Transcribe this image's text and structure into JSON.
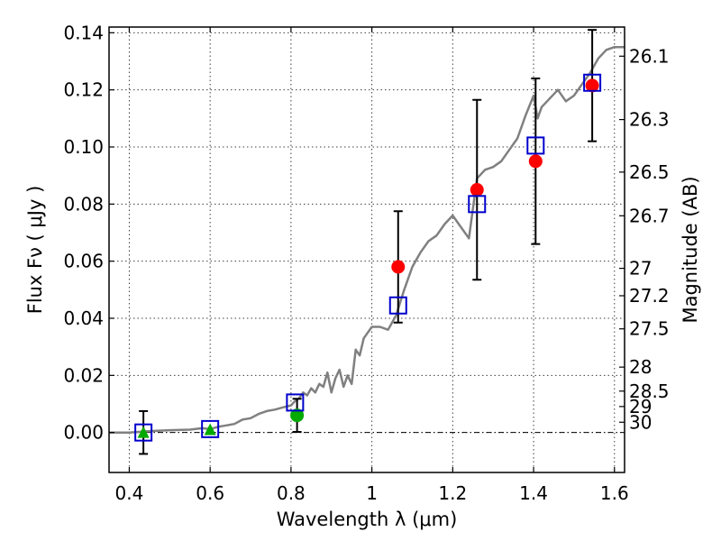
{
  "chart_data": {
    "type": "scatter",
    "xlabel": "Wavelength  λ (μm)",
    "ylabel": "Flux  Fν  ( μJy )",
    "ylabel_right": "Magnitude (AB)",
    "xlim": [
      0.35,
      1.625
    ],
    "ylim": [
      -0.014,
      0.142
    ],
    "grid": true,
    "x_ticks": [
      0.4,
      0.6,
      0.8,
      1.0,
      1.2,
      1.4,
      1.6
    ],
    "x_tick_labels": [
      "0.4",
      "0.6",
      "0.8",
      "1",
      "1.2",
      "1.4",
      "1.6"
    ],
    "y_ticks": [
      0.0,
      0.02,
      0.04,
      0.06,
      0.08,
      0.1,
      0.12,
      0.14
    ],
    "y_tick_labels": [
      "0.00",
      "0.02",
      "0.04",
      "0.06",
      "0.08",
      "0.10",
      "0.12",
      "0.14"
    ],
    "magnitude_ticks": [
      {
        "label": "26.1",
        "flux": 0.1318
      },
      {
        "label": "26.3",
        "flux": 0.1096
      },
      {
        "label": "26.5",
        "flux": 0.0912
      },
      {
        "label": "26.7",
        "flux": 0.0759
      },
      {
        "label": "27",
        "flux": 0.0575
      },
      {
        "label": "27.2",
        "flux": 0.0479
      },
      {
        "label": "27.5",
        "flux": 0.0363
      },
      {
        "label": "28",
        "flux": 0.0229
      },
      {
        "label": "28.5",
        "flux": 0.0145
      },
      {
        "label": "29",
        "flux": 0.0091
      },
      {
        "label": "30",
        "flux": 0.0036
      }
    ],
    "series": [
      {
        "marker": "line",
        "color": "#808080",
        "x": [
          0.35,
          0.4,
          0.45,
          0.5,
          0.55,
          0.58,
          0.6,
          0.62,
          0.64,
          0.66,
          0.68,
          0.7,
          0.72,
          0.74,
          0.76,
          0.78,
          0.8,
          0.81,
          0.82,
          0.83,
          0.84,
          0.85,
          0.86,
          0.87,
          0.88,
          0.89,
          0.9,
          0.91,
          0.92,
          0.93,
          0.94,
          0.95,
          0.96,
          0.97,
          0.98,
          0.99,
          1.0,
          1.02,
          1.04,
          1.06,
          1.08,
          1.1,
          1.12,
          1.14,
          1.16,
          1.18,
          1.2,
          1.22,
          1.24,
          1.26,
          1.28,
          1.3,
          1.32,
          1.34,
          1.36,
          1.38,
          1.4,
          1.41,
          1.42,
          1.44,
          1.46,
          1.48,
          1.5,
          1.52,
          1.54,
          1.56,
          1.58,
          1.6,
          1.625
        ],
        "y": [
          0.0,
          0.0,
          0.0005,
          0.0008,
          0.001,
          0.0015,
          0.0012,
          0.002,
          0.0025,
          0.003,
          0.0045,
          0.005,
          0.0065,
          0.0075,
          0.008,
          0.0088,
          0.0095,
          0.011,
          0.012,
          0.014,
          0.013,
          0.0155,
          0.014,
          0.017,
          0.016,
          0.021,
          0.014,
          0.019,
          0.022,
          0.016,
          0.02,
          0.017,
          0.029,
          0.027,
          0.033,
          0.035,
          0.037,
          0.037,
          0.036,
          0.041,
          0.05,
          0.058,
          0.063,
          0.067,
          0.069,
          0.073,
          0.076,
          0.072,
          0.068,
          0.089,
          0.092,
          0.093,
          0.095,
          0.099,
          0.103,
          0.111,
          0.118,
          0.11,
          0.114,
          0.117,
          0.12,
          0.116,
          0.118,
          0.122,
          0.126,
          0.131,
          0.134,
          0.135,
          0.135
        ]
      },
      {
        "marker": "circle",
        "color": "#ff0000",
        "x": [
          1.065,
          1.26,
          1.405,
          1.545
        ],
        "y": [
          0.058,
          0.085,
          0.095,
          0.1215
        ],
        "yerr": [
          0.0195,
          0.0315,
          0.029,
          0.0195
        ]
      },
      {
        "marker": "circle",
        "color": "#00aa00",
        "x": [
          0.815
        ],
        "y": [
          0.006
        ],
        "yerr": [
          0.0058
        ]
      },
      {
        "marker": "triangle",
        "color": "#00aa00",
        "x": [
          0.435
        ],
        "y": [
          0.0
        ],
        "yerr": [
          0.0075
        ]
      },
      {
        "marker": "triangle",
        "color": "#00aa00",
        "x": [
          0.6
        ],
        "y": [
          0.001
        ],
        "yerr": [
          0.0
        ]
      },
      {
        "marker": "square",
        "color": "#0000cc",
        "x": [
          0.435,
          0.6,
          0.81,
          1.065,
          1.26,
          1.405,
          1.545
        ],
        "y": [
          0.0,
          0.0012,
          0.0105,
          0.0445,
          0.08,
          0.1005,
          0.1225
        ]
      }
    ]
  }
}
